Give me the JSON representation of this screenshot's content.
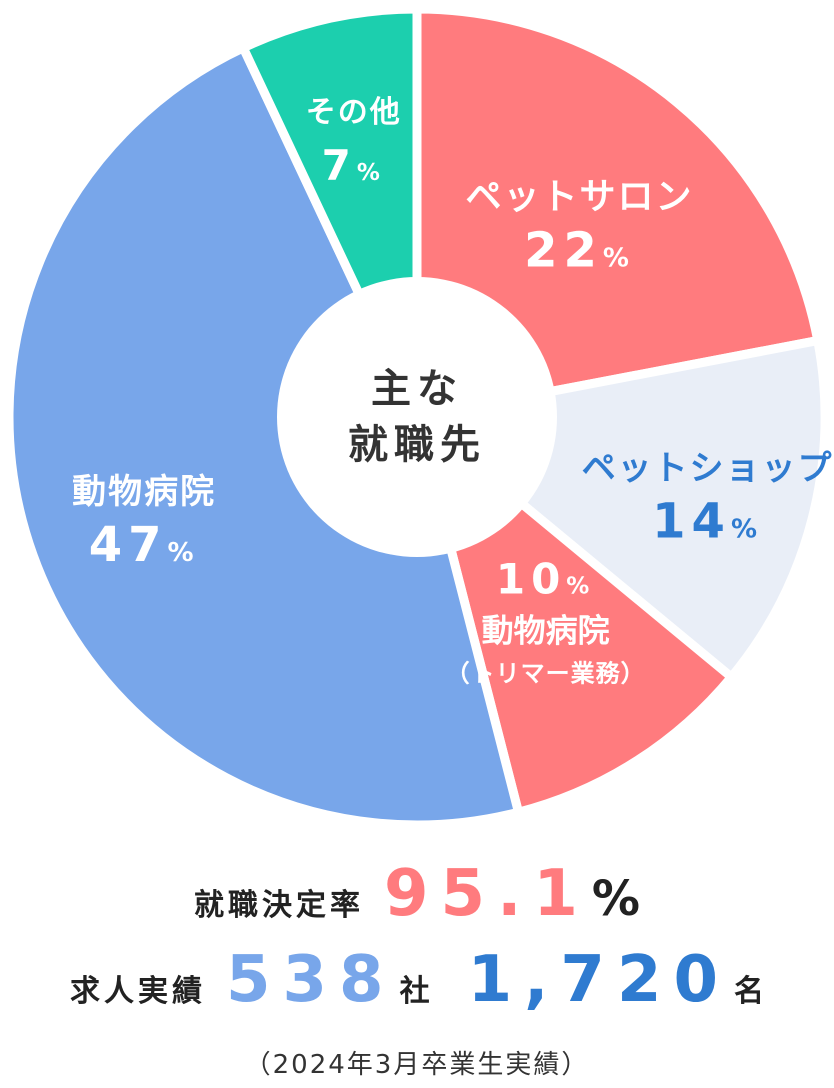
{
  "chart_data": {
    "type": "pie",
    "title": "主な就職先",
    "title_lines": [
      "主な",
      "就職先"
    ],
    "unit": "%",
    "slices": [
      {
        "name": "pet-salon",
        "label": "ペットサロン",
        "value": 22,
        "value_text": "22",
        "color": "#ff7b7e",
        "text_color": "#ffffff"
      },
      {
        "name": "pet-shop",
        "label": "ペットショップ",
        "value": 14,
        "value_text": "14",
        "color": "#e9eef7",
        "text_color": "#2f7bd0"
      },
      {
        "name": "animal-hospital-trimmer",
        "label": "動物病院",
        "sub_label": "（トリマー業務）",
        "value": 10,
        "value_text": "10",
        "color": "#ff7b7e",
        "text_color": "#ffffff"
      },
      {
        "name": "animal-hospital",
        "label": "動物病院",
        "value": 47,
        "value_text": "47",
        "color": "#78a6ea",
        "text_color": "#ffffff"
      },
      {
        "name": "other",
        "label": "その他",
        "value": 7,
        "value_text": "7",
        "color": "#1ccfae",
        "text_color": "#ffffff"
      }
    ]
  },
  "stats": {
    "rate_label": "就職決定率",
    "rate_value": "95.1",
    "rate_unit": "%",
    "rate_color": "#ff7b7e",
    "jobs_label": "求人実績",
    "companies_value": "538",
    "companies_unit": "社",
    "companies_color": "#78a6ea",
    "openings_value": "1,720",
    "openings_unit": "名",
    "openings_color": "#2f7bd0",
    "note": "（2024年3月卒業生実績）"
  }
}
